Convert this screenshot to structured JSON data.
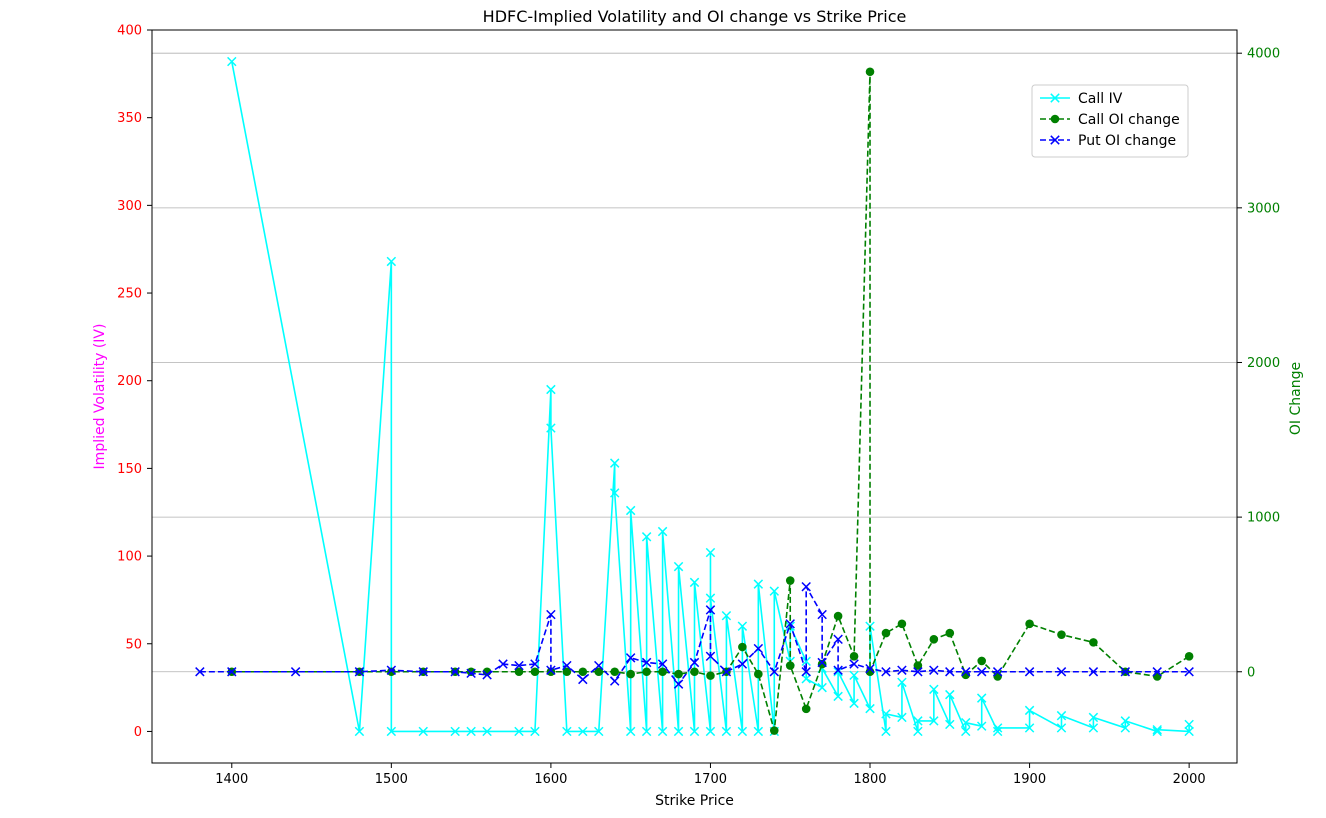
{
  "chart_data": {
    "type": "line",
    "title": "HDFC-Implied Volatility and OI change vs Strike Price",
    "xlabel": "Strike Price",
    "ylabel_left": "Implied Volatility (IV)",
    "ylabel_right": "OI Change",
    "xlim": [
      1350,
      2030
    ],
    "ylim_left": [
      -18,
      400
    ],
    "ylim_right": [
      -590,
      4150
    ],
    "x_ticks": [
      1400,
      1500,
      1600,
      1700,
      1800,
      1900,
      2000
    ],
    "y_left_ticks": [
      0,
      50,
      100,
      150,
      200,
      250,
      300,
      350,
      400
    ],
    "y_right_ticks": [
      0,
      1000,
      2000,
      3000,
      4000
    ],
    "grid": "y-right-only",
    "legend_position": "top-right",
    "colors": {
      "call_iv": "#00ffff",
      "call_oi": "#008000",
      "put_oi": "#0000ff",
      "left_tick_color": "#ff0000",
      "left_label_color": "#ff00ff",
      "right_tick_color": "#008000",
      "right_label_color": "#008000"
    },
    "series": [
      {
        "name": "Call IV",
        "axis": "left",
        "style": "solid-x",
        "x": [
          1400,
          1480,
          1500,
          1500,
          1520,
          1540,
          1550,
          1560,
          1580,
          1590,
          1600,
          1600,
          1610,
          1620,
          1630,
          1640,
          1640,
          1650,
          1650,
          1660,
          1660,
          1670,
          1670,
          1680,
          1680,
          1690,
          1690,
          1700,
          1700,
          1700,
          1710,
          1710,
          1720,
          1720,
          1730,
          1730,
          1740,
          1740,
          1750,
          1750,
          1760,
          1760,
          1770,
          1770,
          1780,
          1780,
          1790,
          1790,
          1800,
          1800,
          1810,
          1810,
          1820,
          1820,
          1830,
          1830,
          1840,
          1840,
          1850,
          1850,
          1860,
          1860,
          1870,
          1870,
          1880,
          1880,
          1900,
          1900,
          1920,
          1920,
          1940,
          1940,
          1960,
          1960,
          1980,
          1980,
          2000,
          2000
        ],
        "y": [
          382,
          0,
          268,
          0,
          0,
          0,
          0,
          0,
          0,
          0,
          195,
          173,
          0,
          0,
          0,
          153,
          136,
          0,
          126,
          0,
          111,
          0,
          114,
          0,
          94,
          0,
          85,
          0,
          102,
          76,
          0,
          66,
          0,
          60,
          0,
          84,
          0,
          80,
          40,
          60,
          40,
          30,
          25,
          36,
          20,
          34,
          16,
          32,
          13,
          60,
          0,
          10,
          8,
          28,
          0,
          6,
          6,
          24,
          4,
          21,
          0,
          5,
          3,
          19,
          0,
          2,
          2,
          12,
          2,
          9,
          2,
          8,
          2,
          6,
          0,
          1,
          0,
          4
        ]
      },
      {
        "name": "Call OI change",
        "axis": "right",
        "style": "dashed-o",
        "x": [
          1400,
          1480,
          1500,
          1520,
          1540,
          1550,
          1560,
          1580,
          1590,
          1600,
          1610,
          1620,
          1630,
          1640,
          1650,
          1660,
          1670,
          1680,
          1690,
          1700,
          1710,
          1720,
          1730,
          1740,
          1750,
          1750,
          1760,
          1770,
          1780,
          1790,
          1800,
          1800,
          1810,
          1820,
          1830,
          1840,
          1850,
          1860,
          1870,
          1880,
          1900,
          1920,
          1940,
          1960,
          1980,
          2000
        ],
        "y": [
          0,
          0,
          0,
          0,
          0,
          0,
          0,
          0,
          0,
          0,
          0,
          0,
          0,
          0,
          -15,
          0,
          0,
          -15,
          0,
          -25,
          0,
          160,
          -15,
          -380,
          590,
          40,
          -240,
          50,
          360,
          100,
          3880,
          0,
          250,
          310,
          40,
          210,
          250,
          -20,
          70,
          -30,
          310,
          240,
          190,
          0,
          -30,
          100
        ]
      },
      {
        "name": "Put OI change",
        "axis": "right",
        "style": "dashed-x",
        "x": [
          1380,
          1400,
          1440,
          1480,
          1500,
          1520,
          1540,
          1550,
          1560,
          1570,
          1580,
          1590,
          1600,
          1600,
          1610,
          1620,
          1630,
          1640,
          1650,
          1660,
          1670,
          1680,
          1690,
          1700,
          1700,
          1710,
          1720,
          1730,
          1740,
          1750,
          1760,
          1760,
          1770,
          1770,
          1780,
          1780,
          1790,
          1800,
          1810,
          1820,
          1830,
          1840,
          1850,
          1860,
          1870,
          1880,
          1900,
          1920,
          1940,
          1960,
          1980,
          2000
        ],
        "y": [
          0,
          0,
          0,
          0,
          10,
          0,
          0,
          -10,
          -20,
          50,
          40,
          50,
          370,
          10,
          40,
          -50,
          40,
          -60,
          90,
          60,
          50,
          -80,
          60,
          400,
          100,
          0,
          50,
          150,
          0,
          310,
          0,
          550,
          370,
          60,
          210,
          10,
          50,
          20,
          0,
          10,
          0,
          10,
          0,
          0,
          0,
          0,
          0,
          0,
          0,
          0,
          0,
          0
        ]
      }
    ]
  }
}
